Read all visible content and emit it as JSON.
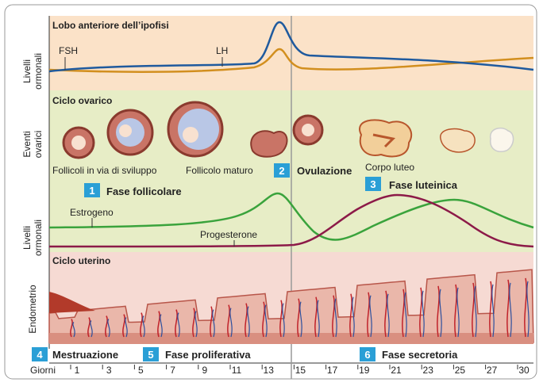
{
  "hypophysis": {
    "title": "Lobo anteriore dell’ipofisi",
    "axis_label": [
      "Livelli",
      "ormonali"
    ],
    "fsh": "FSH",
    "lh": "LH"
  },
  "ovarian": {
    "title": "Ciclo ovarico",
    "events_label": [
      "Eventi",
      "ovarici"
    ],
    "follicles": "Follicoli in via di sviluppo",
    "mature": "Follicolo maturo",
    "corpus": "Corpo luteo",
    "axis_label": [
      "Livelli",
      "ormonali"
    ],
    "estrogen": "Estrogeno",
    "progesterone": "Progesterone"
  },
  "phases": [
    {
      "number": "1",
      "name": "Fase follicolare"
    },
    {
      "number": "2",
      "name": "Ovulazione"
    },
    {
      "number": "3",
      "name": "Fase luteinica"
    },
    {
      "number": "4",
      "name": "Mestruazione"
    },
    {
      "number": "5",
      "name": "Fase proliferativa"
    },
    {
      "number": "6",
      "name": "Fase secretoria"
    }
  ],
  "uterine": {
    "title": "Ciclo uterino",
    "axis_label": "Endometrio"
  },
  "days": {
    "label": "Giorni",
    "values": [
      "1",
      "3",
      "5",
      "7",
      "9",
      "11",
      "13",
      "15",
      "17",
      "19",
      "21",
      "23",
      "25",
      "27",
      "30"
    ]
  }
}
